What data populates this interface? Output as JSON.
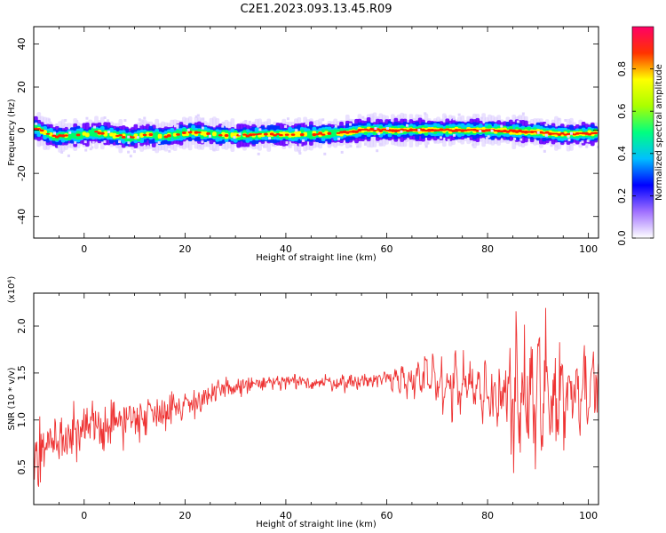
{
  "title": "C2E1.2023.093.13.45.R09",
  "chart_data": [
    {
      "type": "heatmap",
      "xlabel": "Height of straight line (km)",
      "ylabel": "Frequency (Hz)",
      "xlim": [
        -10,
        102
      ],
      "ylim": [
        -50,
        48
      ],
      "xticks": [
        0,
        20,
        40,
        60,
        80,
        100
      ],
      "yticks": [
        -40,
        -20,
        0,
        20,
        40
      ],
      "ridge": [
        {
          "x": -10,
          "y": 1.0
        },
        {
          "x": -8,
          "y": -1.5
        },
        {
          "x": -6,
          "y": -3.0
        },
        {
          "x": -3,
          "y": -2.5
        },
        {
          "x": 0,
          "y": -2.0
        },
        {
          "x": 2,
          "y": -1.0
        },
        {
          "x": 5,
          "y": -2.0
        },
        {
          "x": 9,
          "y": -3.5
        },
        {
          "x": 12,
          "y": -2.0
        },
        {
          "x": 15,
          "y": -3.0
        },
        {
          "x": 18,
          "y": -2.0
        },
        {
          "x": 21,
          "y": -1.0
        },
        {
          "x": 25,
          "y": -2.0
        },
        {
          "x": 30,
          "y": -2.5
        },
        {
          "x": 35,
          "y": -2.0
        },
        {
          "x": 40,
          "y": -2.0
        },
        {
          "x": 45,
          "y": -1.8
        },
        {
          "x": 50,
          "y": -1.5
        },
        {
          "x": 55,
          "y": 0.0
        },
        {
          "x": 60,
          "y": 0.0
        },
        {
          "x": 70,
          "y": 0.0
        },
        {
          "x": 80,
          "y": 0.0
        },
        {
          "x": 90,
          "y": -1.0
        },
        {
          "x": 95,
          "y": -2.0
        },
        {
          "x": 100,
          "y": -1.5
        },
        {
          "x": 101,
          "y": -1.5
        }
      ],
      "colorbar": {
        "label": "Normalized spectral amplitude",
        "range": [
          0.0,
          1.0
        ],
        "ticks": [
          0.0,
          0.2,
          0.4,
          0.6,
          0.8
        ],
        "colors": [
          "#ffffff",
          "#6600ff",
          "#0000ff",
          "#00ffff",
          "#00ff00",
          "#ffff00",
          "#ff0000",
          "#ff0066"
        ]
      }
    },
    {
      "type": "line",
      "xlabel": "Height of straight line (km)",
      "ylabel": "SNR (10 * v/v)",
      "scale_note": "(x10⁴)",
      "xlim": [
        -10,
        102
      ],
      "ylim": [
        0.1,
        2.35
      ],
      "xticks": [
        0,
        20,
        40,
        60,
        80,
        100
      ],
      "yticks": [
        0.5,
        1.0,
        1.5,
        2.0
      ],
      "color": "#ee3333",
      "x": [
        -10,
        -8,
        -6,
        -4,
        -2,
        0,
        2,
        4,
        6,
        8,
        10,
        12,
        14,
        16,
        18,
        20,
        22,
        24,
        26,
        28,
        30,
        32,
        34,
        36,
        38,
        40,
        42,
        44,
        46,
        48,
        50,
        52,
        54,
        56,
        58,
        60,
        62,
        64,
        66,
        68,
        70,
        72,
        74,
        76,
        78,
        80,
        82,
        84,
        86,
        88,
        90,
        92,
        94,
        96,
        98,
        100,
        102
      ],
      "values": [
        0.62,
        0.72,
        0.78,
        0.8,
        0.83,
        0.87,
        0.92,
        0.95,
        0.98,
        1.0,
        1.03,
        1.06,
        1.09,
        1.11,
        1.14,
        1.16,
        1.2,
        1.24,
        1.28,
        1.32,
        1.35,
        1.37,
        1.38,
        1.39,
        1.39,
        1.4,
        1.4,
        1.4,
        1.4,
        1.4,
        1.4,
        1.4,
        1.41,
        1.42,
        1.43,
        1.44,
        1.45,
        1.45,
        1.44,
        1.43,
        1.4,
        1.38,
        1.35,
        1.33,
        1.3,
        1.28,
        1.26,
        1.24,
        1.22,
        1.21,
        1.22,
        1.24,
        1.26,
        1.3,
        1.35,
        1.4,
        1.42
      ],
      "noise_amplitude": [
        0.3,
        0.3,
        0.28,
        0.26,
        0.25,
        0.24,
        0.24,
        0.23,
        0.22,
        0.22,
        0.22,
        0.2,
        0.18,
        0.17,
        0.16,
        0.15,
        0.14,
        0.13,
        0.12,
        0.11,
        0.1,
        0.09,
        0.09,
        0.08,
        0.08,
        0.08,
        0.08,
        0.08,
        0.08,
        0.08,
        0.08,
        0.08,
        0.08,
        0.08,
        0.09,
        0.1,
        0.12,
        0.14,
        0.16,
        0.18,
        0.2,
        0.22,
        0.24,
        0.25,
        0.26,
        0.28,
        0.32,
        0.4,
        0.55,
        0.6,
        0.55,
        0.45,
        0.4,
        0.35,
        0.3,
        0.3,
        0.3
      ]
    }
  ]
}
